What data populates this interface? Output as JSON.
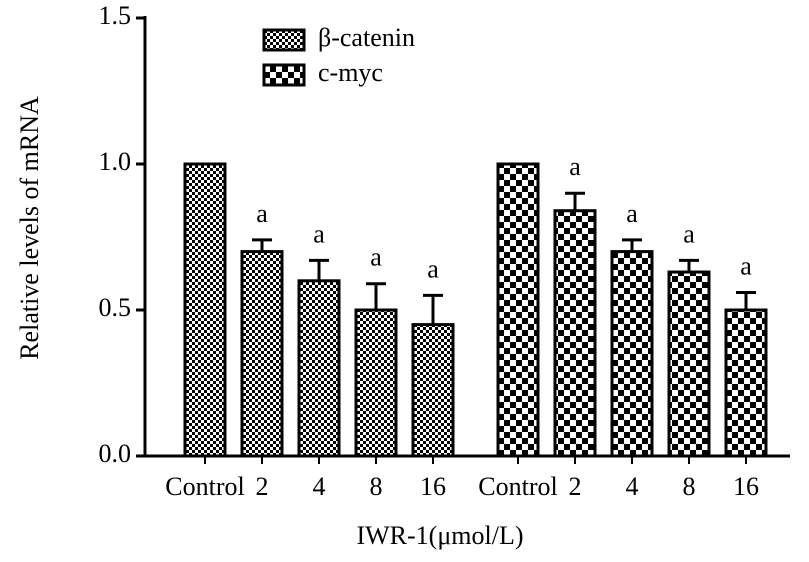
{
  "chart_data": {
    "type": "bar",
    "y_label": "Relative levels of mRNA",
    "x_label": "IWR-1(μmol/L)",
    "categories": [
      "Control",
      "2",
      "4",
      "8",
      "16",
      "Control",
      "2",
      "4",
      "8",
      "16"
    ],
    "series": [
      {
        "name": "β-catenin",
        "color": "#000000",
        "pattern": "fine-checker",
        "values": [
          1.0,
          0.7,
          0.6,
          0.5,
          0.45,
          null,
          null,
          null,
          null,
          null
        ],
        "errors": [
          null,
          0.04,
          0.07,
          0.09,
          0.1,
          null,
          null,
          null,
          null,
          null
        ],
        "annotations": [
          null,
          "a",
          "a",
          "a",
          "a",
          null,
          null,
          null,
          null,
          null
        ]
      },
      {
        "name": "c-myc",
        "color": "#000000",
        "pattern": "coarse-checker",
        "values": [
          null,
          null,
          null,
          null,
          null,
          1.0,
          0.84,
          0.7,
          0.63,
          0.5
        ],
        "errors": [
          null,
          null,
          null,
          null,
          null,
          null,
          0.06,
          0.04,
          0.04,
          0.06
        ],
        "annotations": [
          null,
          null,
          null,
          null,
          null,
          null,
          "a",
          "a",
          "a",
          "a"
        ]
      }
    ],
    "ylim": [
      0,
      1.5
    ],
    "yticks": [
      {
        "value": 0,
        "label": "0.0"
      },
      {
        "value": 0.5,
        "label": "0.5"
      },
      {
        "value": 1.0,
        "label": "1.0"
      },
      {
        "value": 1.5,
        "label": "1.5"
      }
    ]
  }
}
